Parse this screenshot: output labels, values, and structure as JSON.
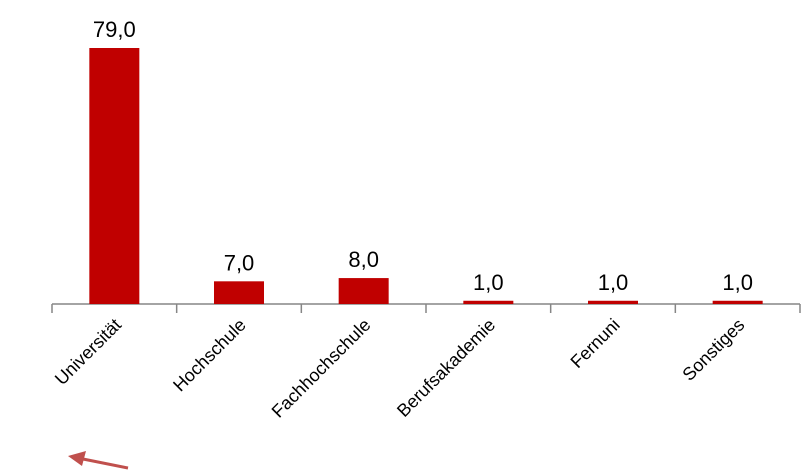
{
  "chart_data": {
    "type": "bar",
    "categories": [
      "Universität",
      "Hochschule",
      "Fachhochschule",
      "Berufsakademie",
      "Fernuni",
      "Sonstiges"
    ],
    "values": [
      79.0,
      7.0,
      8.0,
      1.0,
      1.0,
      1.0
    ],
    "value_labels": [
      "79,0",
      "7,0",
      "8,0",
      "1,0",
      "1,0",
      "1,0"
    ],
    "title": "",
    "xlabel": "",
    "ylabel": "",
    "ylim": [
      0,
      79
    ],
    "grid": false,
    "legend": "none",
    "bar_color": "#C00000",
    "axis_color": "#868686",
    "arrow_color": "#C0504D",
    "annotation_icon": "arrow-pointer-icon"
  }
}
